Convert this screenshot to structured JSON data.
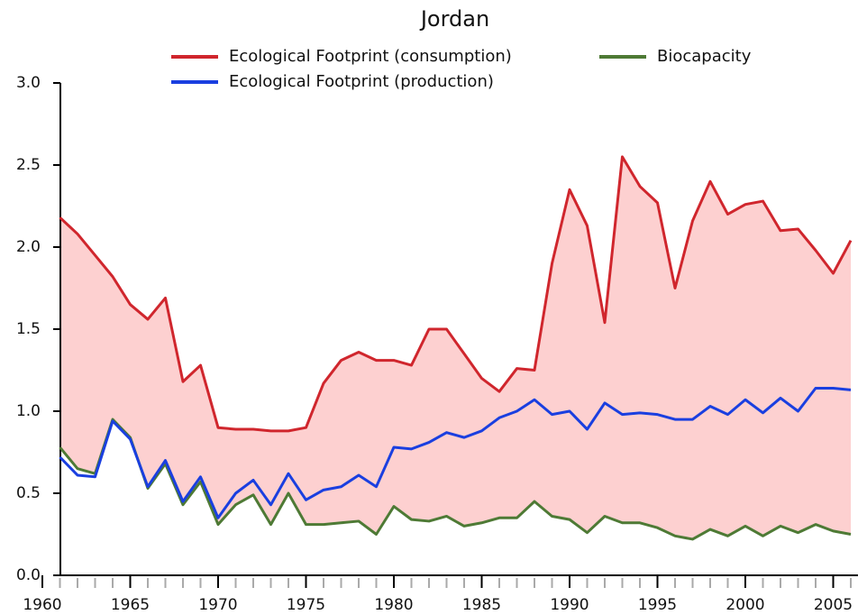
{
  "chart_data": {
    "type": "line",
    "title": "Jordan",
    "x": [
      1961,
      1962,
      1963,
      1964,
      1965,
      1966,
      1967,
      1968,
      1969,
      1970,
      1971,
      1972,
      1973,
      1974,
      1975,
      1976,
      1977,
      1978,
      1979,
      1980,
      1981,
      1982,
      1983,
      1984,
      1985,
      1986,
      1987,
      1988,
      1989,
      1990,
      1991,
      1992,
      1993,
      1994,
      1995,
      1996,
      1997,
      1998,
      1999,
      2000,
      2001,
      2002,
      2003,
      2004,
      2005,
      2006
    ],
    "series": [
      {
        "name": "Ecological Footprint (consumption)",
        "color": "#d0262d",
        "values": [
          2.18,
          2.08,
          1.95,
          1.82,
          1.65,
          1.56,
          1.69,
          1.18,
          1.28,
          0.9,
          0.89,
          0.89,
          0.88,
          0.88,
          0.9,
          1.17,
          1.31,
          1.36,
          1.31,
          1.31,
          1.28,
          1.5,
          1.5,
          1.35,
          1.2,
          1.12,
          1.26,
          1.25,
          1.9,
          2.35,
          2.13,
          1.54,
          2.55,
          2.37,
          2.27,
          1.75,
          2.16,
          2.4,
          2.2,
          2.26,
          2.28,
          2.1,
          2.11,
          1.98,
          1.84,
          2.04
        ]
      },
      {
        "name": "Biocapacity",
        "color": "#4e7a35",
        "values": [
          0.78,
          0.65,
          0.62,
          0.95,
          0.84,
          0.53,
          0.68,
          0.43,
          0.57,
          0.31,
          0.43,
          0.49,
          0.31,
          0.5,
          0.31,
          0.31,
          0.32,
          0.33,
          0.25,
          0.42,
          0.34,
          0.33,
          0.36,
          0.3,
          0.32,
          0.35,
          0.35,
          0.45,
          0.36,
          0.34,
          0.26,
          0.36,
          0.32,
          0.32,
          0.29,
          0.24,
          0.22,
          0.28,
          0.24,
          0.3,
          0.24,
          0.3,
          0.26,
          0.31,
          0.27,
          0.25
        ]
      },
      {
        "name": "Ecological Footprint (production)",
        "color": "#1a3fe0",
        "values": [
          0.72,
          0.61,
          0.6,
          0.94,
          0.83,
          0.54,
          0.7,
          0.45,
          0.6,
          0.35,
          0.5,
          0.58,
          0.43,
          0.62,
          0.46,
          0.52,
          0.54,
          0.61,
          0.54,
          0.78,
          0.77,
          0.81,
          0.87,
          0.84,
          0.88,
          0.96,
          1.0,
          1.07,
          0.98,
          1.0,
          0.89,
          1.05,
          0.98,
          0.99,
          0.98,
          0.95,
          0.95,
          1.03,
          0.98,
          1.07,
          0.99,
          1.08,
          1.0,
          1.14,
          1.14,
          1.13
        ]
      }
    ],
    "fill_color": "#fdd0d0",
    "xlim": [
      1960,
      2006
    ],
    "xticks": [
      1960,
      1965,
      1970,
      1975,
      1980,
      1985,
      1990,
      1995,
      2000,
      2005
    ],
    "ylim": [
      0,
      3
    ],
    "yticks": [
      {
        "value": 0,
        "label": "0.0"
      },
      0.5,
      {
        "value": 1,
        "label": "1.0"
      },
      1.5,
      {
        "value": 2,
        "label": "2.0"
      },
      2.5,
      {
        "value": 3,
        "label": "3.0"
      }
    ]
  }
}
